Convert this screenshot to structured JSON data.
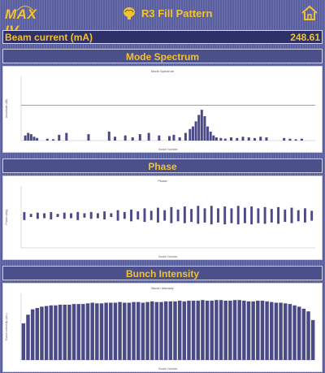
{
  "header": {
    "logo_text": "MAX IV",
    "title": "R3 Fill Pattern",
    "title_icon": "brain-icon",
    "home_icon": "home-icon",
    "accent": "#f2c230"
  },
  "beam": {
    "label": "Beam current (mA)",
    "value": "248.61"
  },
  "panels": [
    {
      "title": "Mode Spectrum"
    },
    {
      "title": "Phase"
    },
    {
      "title": "Bunch Intensity"
    }
  ],
  "chart_data": [
    {
      "type": "bar",
      "title": "Mode Spectrum",
      "xlabel": "Bunch Number",
      "ylabel": "Amplitude (dB)",
      "x": [
        4,
        8,
        12,
        16,
        20,
        34,
        42,
        50,
        60,
        90,
        118,
        126,
        140,
        150,
        160,
        172,
        186,
        200,
        206,
        214,
        222,
        228,
        232,
        236,
        240,
        244,
        248,
        252,
        256,
        260,
        264,
        270,
        276,
        284,
        292,
        300,
        308,
        316,
        324,
        332,
        356,
        364,
        372,
        380
      ],
      "values": [
        0.08,
        0.12,
        0.1,
        0.06,
        0.04,
        0.03,
        0.02,
        0.09,
        0.12,
        0.1,
        0.14,
        0.06,
        0.08,
        0.05,
        0.1,
        0.12,
        0.08,
        0.07,
        0.09,
        0.05,
        0.12,
        0.18,
        0.22,
        0.3,
        0.4,
        0.48,
        0.38,
        0.22,
        0.14,
        0.08,
        0.05,
        0.04,
        0.03,
        0.05,
        0.04,
        0.06,
        0.05,
        0.04,
        0.06,
        0.05,
        0.04,
        0.03,
        0.02,
        0.03
      ],
      "threshold": 0.55,
      "ylim": [
        0,
        1
      ]
    },
    {
      "type": "bar",
      "title": "Phase",
      "xlabel": "Bunch Number",
      "ylabel": "Phase (deg)",
      "values_lo": [
        0.45,
        0.5,
        0.47,
        0.48,
        0.46,
        0.5,
        0.47,
        0.48,
        0.45,
        0.49,
        0.47,
        0.48,
        0.46,
        0.5,
        0.44,
        0.47,
        0.43,
        0.46,
        0.42,
        0.45,
        0.41,
        0.44,
        0.4,
        0.43,
        0.4,
        0.42,
        0.39,
        0.41,
        0.38,
        0.41,
        0.38,
        0.4,
        0.38,
        0.4,
        0.38,
        0.4,
        0.39,
        0.41,
        0.39,
        0.42,
        0.4,
        0.43,
        0.41,
        0.44
      ],
      "values_hi": [
        0.58,
        0.55,
        0.57,
        0.56,
        0.58,
        0.55,
        0.57,
        0.56,
        0.58,
        0.56,
        0.58,
        0.56,
        0.59,
        0.56,
        0.61,
        0.58,
        0.62,
        0.59,
        0.64,
        0.6,
        0.65,
        0.61,
        0.66,
        0.62,
        0.67,
        0.63,
        0.68,
        0.64,
        0.68,
        0.64,
        0.67,
        0.64,
        0.68,
        0.65,
        0.67,
        0.64,
        0.66,
        0.63,
        0.66,
        0.62,
        0.65,
        0.61,
        0.64,
        0.6
      ],
      "ylim": [
        0,
        1
      ]
    },
    {
      "type": "bar",
      "title": "Bunch Intensity",
      "xlabel": "Bunch Number",
      "ylabel": "Bunch Intensity (arb.)",
      "values": [
        0.55,
        0.68,
        0.76,
        0.78,
        0.8,
        0.81,
        0.82,
        0.82,
        0.83,
        0.83,
        0.83,
        0.84,
        0.84,
        0.84,
        0.85,
        0.86,
        0.85,
        0.85,
        0.86,
        0.86,
        0.86,
        0.87,
        0.86,
        0.86,
        0.87,
        0.87,
        0.86,
        0.87,
        0.88,
        0.87,
        0.87,
        0.88,
        0.88,
        0.88,
        0.89,
        0.88,
        0.89,
        0.89,
        0.89,
        0.9,
        0.89,
        0.89,
        0.9,
        0.9,
        0.89,
        0.89,
        0.9,
        0.9,
        0.89,
        0.88,
        0.88,
        0.89,
        0.89,
        0.88,
        0.87,
        0.86,
        0.86,
        0.85,
        0.84,
        0.82,
        0.8,
        0.77,
        0.73,
        0.6
      ],
      "ylim": [
        0,
        1
      ]
    }
  ]
}
